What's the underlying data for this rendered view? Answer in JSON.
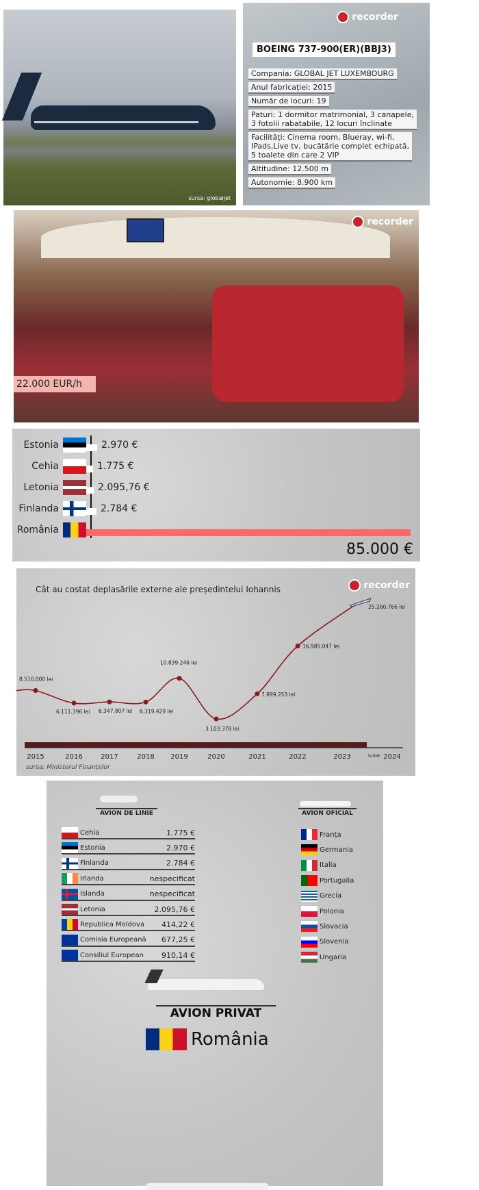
{
  "brand": "recorder",
  "panel1": {
    "source": "sursa: globaljet",
    "title": "BOEING 737-900(ER)(BBJ3)",
    "rows": [
      "Compania: GLOBAL JET LUXEMBOURG",
      "Anul fabricației: 2015",
      "Număr de locuri: 19",
      "Paturi: 1 dormitor matrimonial, 3 canapele,\n3 fotolii rabatabile, 12 locuri înclinate",
      "Facilități: Cinema room, Blueray, wi-fi,\nIPads,Live tv, bucătărie complet echipată,\n5 toalete din care 2 VIP",
      "Altitudine: 12.500 m",
      "Autonomie: 8.900 km"
    ]
  },
  "panel2": {
    "price": "22.000 EUR/h"
  },
  "chart_data": [
    {
      "type": "bar",
      "orientation": "horizontal",
      "categories": [
        "Estonia",
        "Cehia",
        "Letonia",
        "Finlanda",
        "România"
      ],
      "values": [
        2970,
        1775,
        2095.76,
        2784,
        85000
      ],
      "labels": [
        "2.970 €",
        "1.775 €",
        "2.095,76 €",
        "2.784 €",
        "85.000 €"
      ],
      "colors": {
        "default": "#ffffff",
        "highlight": "#f86a6a"
      }
    },
    {
      "type": "line",
      "title": "Cât au costat deplasările externe ale președintelui Iohannis",
      "x": [
        2015,
        2016,
        2017,
        2018,
        2019,
        2020,
        2021,
        2022,
        2023
      ],
      "values": [
        8510000,
        6111396,
        6347807,
        6319429,
        10839246,
        3103378,
        7899253,
        16985047,
        25260766
      ],
      "labels": [
        "8.510.000 lei",
        "6.111.396 lei",
        "6.347.807 lei",
        "6.319.429 lei",
        "10.839.246 lei",
        "3.103.378 lei",
        "7.899.253 lei",
        "16.985.047 lei",
        "25.260.766 lei"
      ],
      "x_ticks": [
        "2015",
        "2016",
        "2017",
        "2018",
        "2019",
        "2020",
        "2021",
        "2022",
        "2023",
        "2024"
      ],
      "x_note": "iunie",
      "source": "sursa: Ministerul Finanțelor",
      "color": "#8b1a1a",
      "grid": false
    }
  ],
  "panel5": {
    "left_header": "AVION DE LINIE",
    "right_header": "AVION OFICIAL",
    "left_rows": [
      {
        "country": "Cehia",
        "value": "1.775 €",
        "flag": "cz"
      },
      {
        "country": "Estonia",
        "value": "2.970 €",
        "flag": "ee"
      },
      {
        "country": "Finlanda",
        "value": "2.784 €",
        "flag": "fi"
      },
      {
        "country": "Irlanda",
        "value": "nespecificat",
        "flag": "ie"
      },
      {
        "country": "Islanda",
        "value": "nespecificat",
        "flag": "is"
      },
      {
        "country": "Letonia",
        "value": "2.095,76 €",
        "flag": "lv"
      },
      {
        "country": "Republica Moldova",
        "value": "414,22 €",
        "flag": "md"
      },
      {
        "country": "Comisia Europeană",
        "value": "677,25 €",
        "flag": "eu"
      },
      {
        "country": "Consiliul European",
        "value": "910,14 €",
        "flag": "eu"
      }
    ],
    "right_rows": [
      {
        "country": "Franța",
        "flag": "fr"
      },
      {
        "country": "Germania",
        "flag": "de"
      },
      {
        "country": "Italia",
        "flag": "it"
      },
      {
        "country": "Portugalia",
        "flag": "pt"
      },
      {
        "country": "Grecia",
        "flag": "gr"
      },
      {
        "country": "Polonia",
        "flag": "pl"
      },
      {
        "country": "Slovacia",
        "flag": "sk"
      },
      {
        "country": "Slovenia",
        "flag": "si"
      },
      {
        "country": "Ungaria",
        "flag": "hu"
      }
    ],
    "private_header": "AVION PRIVAT",
    "private_country": "România"
  }
}
